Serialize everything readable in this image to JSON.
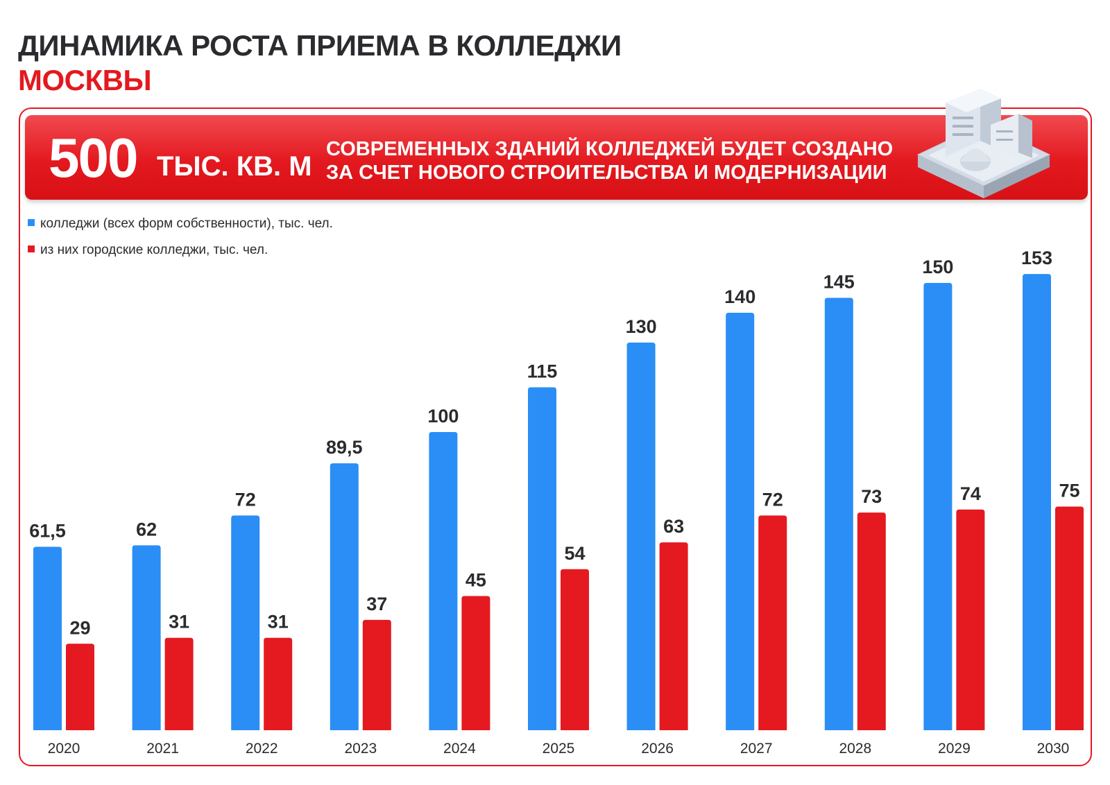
{
  "header": {
    "title_line1": "ДИНАМИКА РОСТА ПРИЕМА В КОЛЛЕДЖИ",
    "title_line2": "МОСКВЫ"
  },
  "banner": {
    "number": "500",
    "unit": "ТЫС. КВ. М",
    "text_line1": "СОВРЕМЕННЫХ ЗДАНИЙ КОЛЛЕДЖЕЙ БУДЕТ СОЗДАНО",
    "text_line2": "ЗА СЧЕТ НОВОГО СТРОИТЕЛЬСТВА И МОДЕРНИЗАЦИИ",
    "image_icon": "building-icon"
  },
  "colors": {
    "blue": "#2a8ef6",
    "red": "#e41a20",
    "text": "#2b2b2f",
    "accent": "#e3191f"
  },
  "chart_data": {
    "type": "bar",
    "categories": [
      "2020",
      "2021",
      "2022",
      "2023",
      "2024",
      "2025",
      "2026",
      "2027",
      "2028",
      "2029",
      "2030"
    ],
    "series": [
      {
        "name": "колледжи (всех форм собственности), тыс. чел.",
        "color": "#2a8ef6",
        "values": [
          61.5,
          62,
          72,
          89.5,
          100,
          115,
          130,
          140,
          145,
          150,
          153
        ],
        "labels": [
          "61,5",
          "62",
          "72",
          "89,5",
          "100",
          "115",
          "130",
          "140",
          "145",
          "150",
          "153"
        ]
      },
      {
        "name": "из них городские колледжи, тыс. чел.",
        "color": "#e41a20",
        "values": [
          29,
          31,
          31,
          37,
          45,
          54,
          63,
          72,
          73,
          74,
          75
        ],
        "labels": [
          "29",
          "31",
          "31",
          "37",
          "45",
          "54",
          "63",
          "72",
          "73",
          "74",
          "75"
        ]
      }
    ],
    "legend_position": "top-left",
    "grid": false
  }
}
